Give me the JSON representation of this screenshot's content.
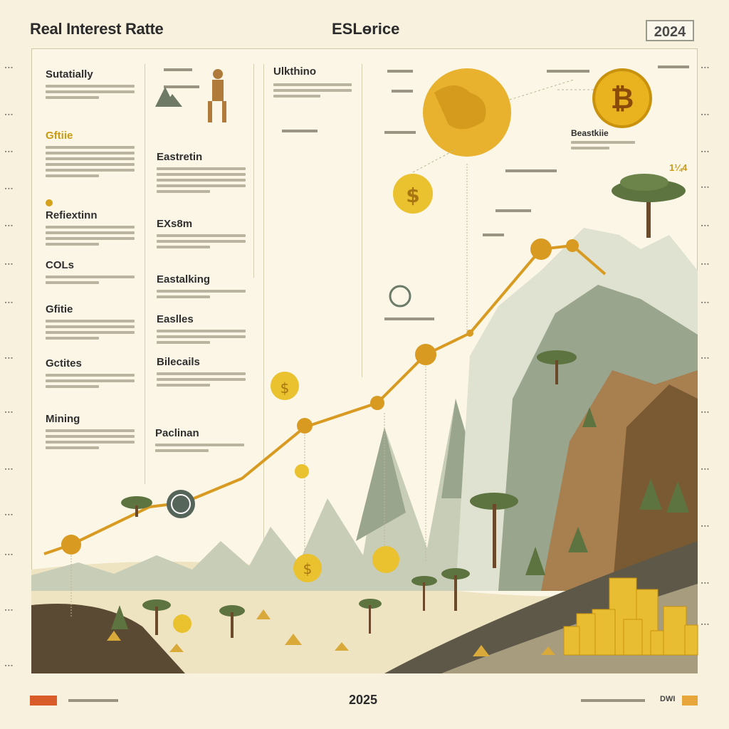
{
  "header": {
    "title_left": "Real Interest Ratte",
    "title_center": "ESLɵrice",
    "year_top": "2024"
  },
  "footer": {
    "year_bottom": "2025",
    "right_mark": "DWI"
  },
  "sections": {
    "col1": [
      {
        "title": "Sutatially",
        "style": "dark"
      },
      {
        "title": "Gftiie",
        "style": "gold"
      },
      {
        "title": "Refiextinn",
        "style": "dark"
      },
      {
        "title": "COLs",
        "style": "dark"
      },
      {
        "title": "Gfitie",
        "style": "dark"
      },
      {
        "title": "Gctites",
        "style": "dark"
      },
      {
        "title": "Mining",
        "style": "dark"
      }
    ],
    "col2": [
      {
        "title": "Eastretin"
      },
      {
        "title": "EXs8m"
      },
      {
        "title": "Eastalking"
      },
      {
        "title": "Easlles"
      },
      {
        "title": "Bilecails"
      },
      {
        "title": "Paclinan"
      }
    ],
    "col3": [
      {
        "title": "Ulkthino"
      }
    ],
    "col4": [
      {
        "title": "Beastkiie"
      },
      {
        "title": "1¼4"
      }
    ]
  },
  "colors": {
    "gold": "#d5a01a",
    "line": "#d89a20",
    "mountain_light": "#c8cdb8",
    "mountain_dark": "#7d8872",
    "sand": "#efe4c2",
    "earth": "#8a6a3e"
  },
  "icons": {
    "bitcoin_coin": "bitcoin-icon",
    "dollar_coin": "dollar-icon",
    "globe": "globe-icon",
    "tree": "tree-icon",
    "gold_bars": "gold-bars-icon"
  }
}
